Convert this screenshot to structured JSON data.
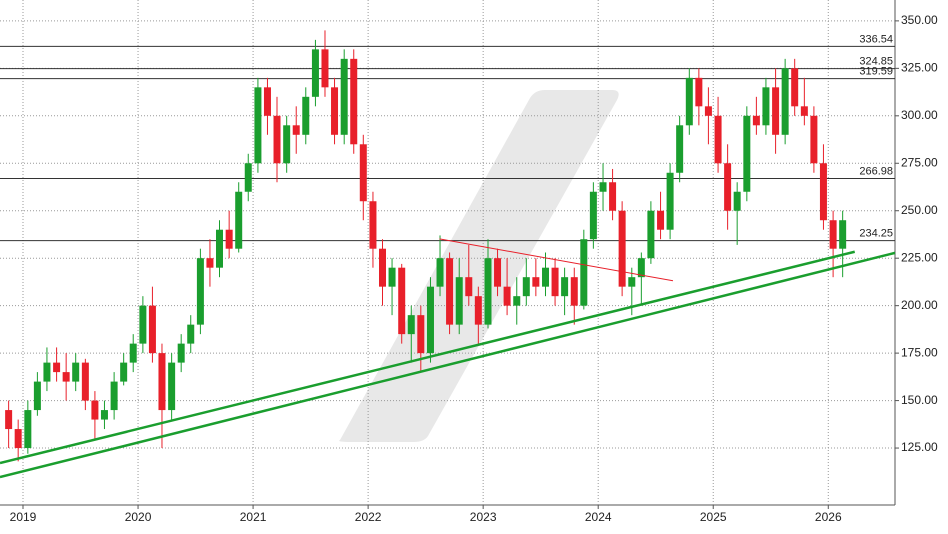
{
  "chart_data": {
    "type": "candlestick",
    "xlim": [
      2018.8,
      2026.58
    ],
    "xticks": [
      2019,
      2020,
      2021,
      2022,
      2023,
      2024,
      2025,
      2026
    ],
    "ylim": [
      95,
      361
    ],
    "yticks": [
      {
        "value": 125,
        "label": "125.00"
      },
      {
        "value": 150,
        "label": "150.00"
      },
      {
        "value": 175,
        "label": "175.00"
      },
      {
        "value": 200,
        "label": "200.00"
      },
      {
        "value": 225,
        "label": "225.00"
      },
      {
        "value": 250,
        "label": "250.00"
      },
      {
        "value": 275,
        "label": "275.00"
      },
      {
        "value": 300,
        "label": "300.00"
      },
      {
        "value": 325,
        "label": "325.00"
      },
      {
        "value": 350,
        "label": "350.00"
      }
    ],
    "grid": true,
    "up_color": "#1a9e2e",
    "down_color": "#e8202a",
    "x": [
      2018.875,
      2018.958,
      2019.042,
      2019.125,
      2019.208,
      2019.292,
      2019.375,
      2019.458,
      2019.542,
      2019.625,
      2019.708,
      2019.792,
      2019.875,
      2019.958,
      2020.042,
      2020.125,
      2020.208,
      2020.292,
      2020.375,
      2020.458,
      2020.542,
      2020.625,
      2020.708,
      2020.792,
      2020.875,
      2020.958,
      2021.042,
      2021.125,
      2021.208,
      2021.292,
      2021.375,
      2021.458,
      2021.542,
      2021.625,
      2021.708,
      2021.792,
      2021.875,
      2021.958,
      2022.042,
      2022.125,
      2022.208,
      2022.292,
      2022.375,
      2022.458,
      2022.542,
      2022.625,
      2022.708,
      2022.792,
      2022.875,
      2022.958,
      2023.042,
      2023.125,
      2023.208,
      2023.292,
      2023.375,
      2023.458,
      2023.542,
      2023.625,
      2023.708,
      2023.792,
      2023.875,
      2023.958,
      2024.042,
      2024.125,
      2024.208,
      2024.292,
      2024.375,
      2024.458,
      2024.542,
      2024.625,
      2024.708,
      2024.792,
      2024.875,
      2024.958,
      2025.042,
      2025.125,
      2025.208,
      2025.292,
      2025.375,
      2025.458,
      2025.542,
      2025.625,
      2025.708,
      2025.792,
      2025.875,
      2025.958,
      2026.042,
      2026.125
    ],
    "open": [
      145,
      135,
      125,
      145,
      160,
      170,
      165,
      160,
      170,
      150,
      140,
      145,
      160,
      170,
      180,
      200,
      175,
      145,
      170,
      180,
      190,
      225,
      220,
      240,
      230,
      260,
      275,
      315,
      300,
      275,
      295,
      290,
      310,
      335,
      315,
      290,
      330,
      285,
      255,
      230,
      210,
      220,
      185,
      195,
      175,
      210,
      225,
      190,
      215,
      205,
      190,
      225,
      210,
      200,
      205,
      215,
      210,
      220,
      205,
      215,
      200,
      235,
      260,
      265,
      250,
      210,
      215,
      225,
      250,
      240,
      270,
      295,
      320,
      305,
      300,
      275,
      250,
      260,
      300,
      295,
      315,
      290,
      325,
      305,
      300,
      275,
      245,
      230
    ],
    "high": [
      150,
      140,
      150,
      165,
      178,
      178,
      175,
      175,
      172,
      155,
      150,
      165,
      175,
      185,
      205,
      210,
      180,
      175,
      185,
      195,
      230,
      235,
      245,
      250,
      265,
      280,
      320,
      320,
      310,
      300,
      305,
      315,
      340,
      345,
      320,
      335,
      335,
      290,
      260,
      235,
      225,
      222,
      200,
      200,
      215,
      237,
      228,
      225,
      232,
      210,
      235,
      230,
      225,
      215,
      225,
      225,
      228,
      225,
      220,
      220,
      240,
      265,
      275,
      272,
      255,
      220,
      228,
      255,
      260,
      275,
      300,
      325,
      325,
      315,
      310,
      285,
      265,
      305,
      310,
      320,
      325,
      330,
      330,
      320,
      305,
      285,
      250,
      250
    ],
    "low": [
      125,
      118,
      122,
      142,
      155,
      160,
      150,
      155,
      145,
      130,
      135,
      140,
      158,
      165,
      175,
      170,
      125,
      140,
      165,
      175,
      185,
      210,
      215,
      225,
      228,
      255,
      270,
      290,
      265,
      270,
      280,
      285,
      305,
      310,
      285,
      285,
      280,
      245,
      220,
      200,
      195,
      180,
      170,
      165,
      170,
      205,
      185,
      185,
      200,
      180,
      188,
      205,
      195,
      190,
      200,
      205,
      205,
      200,
      195,
      190,
      198,
      230,
      250,
      245,
      205,
      195,
      200,
      222,
      235,
      235,
      265,
      290,
      295,
      285,
      270,
      240,
      232,
      255,
      290,
      290,
      280,
      285,
      300,
      295,
      270,
      240,
      215,
      215
    ],
    "close": [
      135,
      125,
      145,
      160,
      170,
      165,
      160,
      170,
      150,
      140,
      145,
      160,
      170,
      180,
      200,
      175,
      145,
      170,
      180,
      190,
      225,
      220,
      240,
      230,
      260,
      275,
      315,
      300,
      275,
      295,
      290,
      310,
      335,
      315,
      290,
      330,
      285,
      255,
      230,
      210,
      220,
      185,
      195,
      175,
      210,
      225,
      190,
      215,
      205,
      190,
      225,
      210,
      200,
      205,
      215,
      210,
      220,
      205,
      215,
      200,
      235,
      260,
      265,
      250,
      210,
      215,
      225,
      250,
      240,
      270,
      295,
      320,
      305,
      300,
      275,
      250,
      260,
      300,
      295,
      315,
      290,
      325,
      305,
      300,
      275,
      245,
      230,
      245
    ],
    "levels": [
      {
        "value": 336.54
      },
      {
        "value": 324.85
      },
      {
        "value": 319.59
      },
      {
        "value": 266.98
      },
      {
        "value": 234.25
      }
    ],
    "level_color": "#333333",
    "trendlines": [
      {
        "color": "#1a9e2e",
        "x": [
          2018.8,
          2026.58
        ],
        "y": [
          109.7,
          227.8
        ]
      },
      {
        "color": "#1a9e2e",
        "x": [
          2018.8,
          2026.23
        ],
        "y": [
          117.1,
          228.4
        ]
      },
      {
        "color": "#e8202a",
        "x": [
          2022.62,
          2024.65
        ],
        "y": [
          235.2,
          213.1
        ]
      }
    ]
  }
}
